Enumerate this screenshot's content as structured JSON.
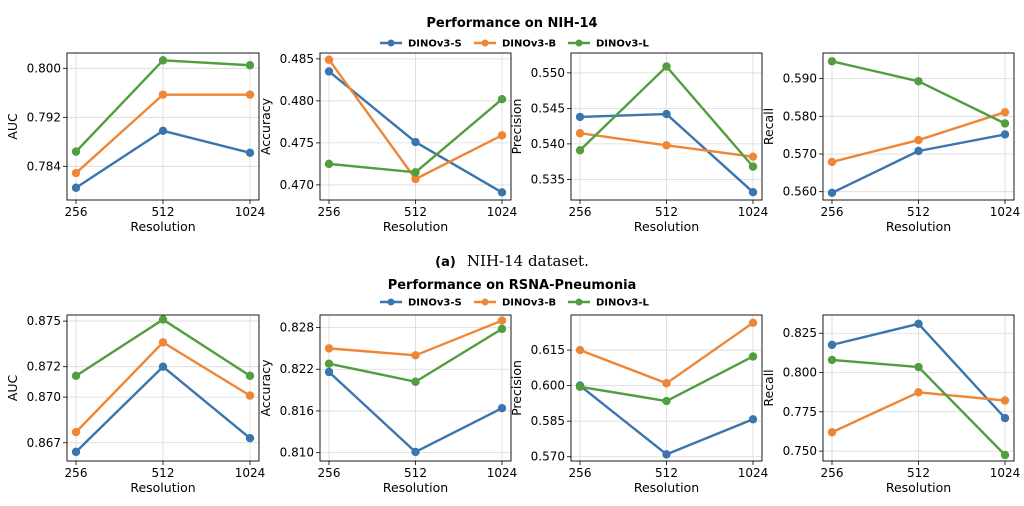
{
  "colors": {
    "DINOv3-S": "#3b75af",
    "DINOv3-B": "#ef8636",
    "DINOv3-L": "#519e3e"
  },
  "sections": [
    {
      "title": "Performance on NIH-14",
      "caption_tag": "(a)",
      "caption_text": "NIH-14 dataset.",
      "legend": [
        "DINOv3-S",
        "DINOv3-B",
        "DINOv3-L"
      ]
    },
    {
      "title": "Performance on RSNA-Pneumonia",
      "legend": [
        "DINOv3-S",
        "DINOv3-B",
        "DINOv3-L"
      ]
    }
  ],
  "chart_data": [
    {
      "type": "line",
      "ylabel": "AUC",
      "xlabel": "Resolution",
      "categories": [
        "256",
        "512",
        "1024"
      ],
      "yticks": [
        0.784,
        0.792,
        0.8
      ],
      "ytick_labels": [
        "0.784",
        "0.792",
        "0.800"
      ],
      "ylim": [
        0.7785,
        0.8025
      ],
      "grid": true,
      "series": [
        {
          "name": "DINOv3-S",
          "values": [
            0.7805,
            0.7898,
            0.7862
          ]
        },
        {
          "name": "DINOv3-B",
          "values": [
            0.7829,
            0.7957,
            0.7957
          ]
        },
        {
          "name": "DINOv3-L",
          "values": [
            0.7864,
            0.8013,
            0.8005
          ]
        }
      ]
    },
    {
      "type": "line",
      "ylabel": "Accuracy",
      "xlabel": "Resolution",
      "categories": [
        "256",
        "512",
        "1024"
      ],
      "yticks": [
        0.47,
        0.475,
        0.48,
        0.485
      ],
      "ytick_labels": [
        "0.470",
        "0.475",
        "0.480",
        "0.485"
      ],
      "ylim": [
        0.4682,
        0.4857
      ],
      "grid": true,
      "series": [
        {
          "name": "DINOv3-S",
          "values": [
            0.4835,
            0.4751,
            0.4691
          ]
        },
        {
          "name": "DINOv3-B",
          "values": [
            0.4849,
            0.4707,
            0.4759
          ]
        },
        {
          "name": "DINOv3-L",
          "values": [
            0.4725,
            0.4715,
            0.4802
          ]
        }
      ]
    },
    {
      "type": "line",
      "ylabel": "Precision",
      "xlabel": "Resolution",
      "categories": [
        "256",
        "512",
        "1024"
      ],
      "yticks": [
        0.535,
        0.54,
        0.545,
        0.55
      ],
      "ytick_labels": [
        "0.535",
        "0.540",
        "0.545",
        "0.550"
      ],
      "ylim": [
        0.5321,
        0.5528
      ],
      "grid": true,
      "series": [
        {
          "name": "DINOv3-S",
          "values": [
            0.5438,
            0.5442,
            0.5332
          ]
        },
        {
          "name": "DINOv3-B",
          "values": [
            0.5415,
            0.5398,
            0.5382
          ]
        },
        {
          "name": "DINOv3-L",
          "values": [
            0.5391,
            0.5509,
            0.5368
          ]
        }
      ]
    },
    {
      "type": "line",
      "ylabel": "Recall",
      "xlabel": "Resolution",
      "categories": [
        "256",
        "512",
        "1024"
      ],
      "yticks": [
        0.56,
        0.57,
        0.58,
        0.59
      ],
      "ytick_labels": [
        "0.560",
        "0.570",
        "0.580",
        "0.590"
      ],
      "ylim": [
        0.5578,
        0.5968
      ],
      "grid": true,
      "series": [
        {
          "name": "DINOv3-S",
          "values": [
            0.5597,
            0.5708,
            0.5752
          ]
        },
        {
          "name": "DINOv3-B",
          "values": [
            0.5679,
            0.5737,
            0.5811
          ]
        },
        {
          "name": "DINOv3-L",
          "values": [
            0.5946,
            0.5893,
            0.5781
          ]
        }
      ]
    },
    {
      "type": "line",
      "ylabel": "AUC",
      "xlabel": "Resolution",
      "categories": [
        "256",
        "512",
        "1024"
      ],
      "yticks": [
        0.867,
        0.87,
        0.872,
        0.875
      ],
      "ytick_labels": [
        "0.867",
        "0.870",
        "0.872",
        "0.875"
      ],
      "ylim": [
        0.8658,
        0.8754
      ],
      "grid": true,
      "series": [
        {
          "name": "DINOv3-S",
          "values": [
            0.8664,
            0.872,
            0.8673
          ]
        },
        {
          "name": "DINOv3-B",
          "values": [
            0.8677,
            0.8736,
            0.8701
          ]
        },
        {
          "name": "DINOv3-L",
          "values": [
            0.8714,
            0.8751,
            0.8714
          ]
        }
      ]
    },
    {
      "type": "line",
      "ylabel": "Accuracy",
      "xlabel": "Resolution",
      "categories": [
        "256",
        "512",
        "1024"
      ],
      "yticks": [
        0.81,
        0.816,
        0.822,
        0.828
      ],
      "ytick_labels": [
        "0.810",
        "0.816",
        "0.822",
        "0.828"
      ],
      "ylim": [
        0.8088,
        0.8298
      ],
      "grid": true,
      "series": [
        {
          "name": "DINOv3-S",
          "values": [
            0.8216,
            0.8101,
            0.8164
          ]
        },
        {
          "name": "DINOv3-B",
          "values": [
            0.825,
            0.824,
            0.829
          ]
        },
        {
          "name": "DINOv3-L",
          "values": [
            0.8228,
            0.8202,
            0.8278
          ]
        }
      ]
    },
    {
      "type": "line",
      "ylabel": "Precision",
      "xlabel": "Resolution",
      "categories": [
        "256",
        "512",
        "1024"
      ],
      "yticks": [
        0.57,
        0.585,
        0.6,
        0.615
      ],
      "ytick_labels": [
        "0.570",
        "0.585",
        "0.600",
        "0.615"
      ],
      "ylim": [
        0.5682,
        0.6298
      ],
      "grid": true,
      "series": [
        {
          "name": "DINOv3-S",
          "values": [
            0.6,
            0.571,
            0.5858
          ]
        },
        {
          "name": "DINOv3-B",
          "values": [
            0.615,
            0.601,
            0.6265
          ]
        },
        {
          "name": "DINOv3-L",
          "values": [
            0.5995,
            0.5935,
            0.6123
          ]
        }
      ]
    },
    {
      "type": "line",
      "ylabel": "Recall",
      "xlabel": "Resolution",
      "categories": [
        "256",
        "512",
        "1024"
      ],
      "yticks": [
        0.75,
        0.775,
        0.8,
        0.825
      ],
      "ytick_labels": [
        "0.750",
        "0.775",
        "0.800",
        "0.825"
      ],
      "ylim": [
        0.7437,
        0.8366
      ],
      "grid": true,
      "series": [
        {
          "name": "DINOv3-S",
          "values": [
            0.8176,
            0.831,
            0.771
          ]
        },
        {
          "name": "DINOv3-B",
          "values": [
            0.762,
            0.7874,
            0.7822
          ]
        },
        {
          "name": "DINOv3-L",
          "values": [
            0.808,
            0.8035,
            0.7475
          ]
        }
      ]
    }
  ]
}
